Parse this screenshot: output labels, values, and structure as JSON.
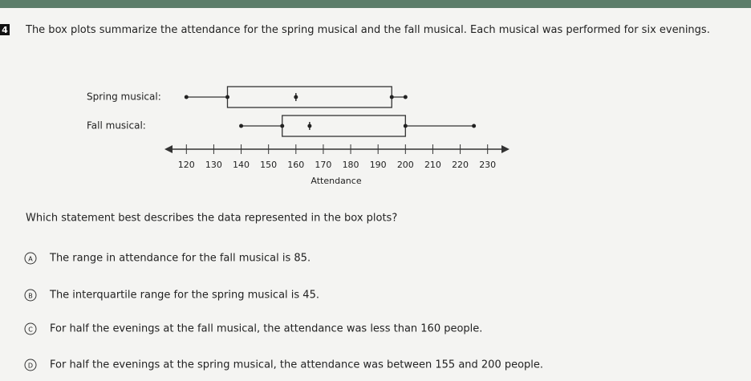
{
  "question_number": "4",
  "prompt": "The box plots summarize the attendance for the spring musical and the fall musical. Each musical was performed for six evenings.",
  "chart_data": {
    "type": "box",
    "xlabel": "Attendance",
    "categories": [
      "Spring musical:",
      "Fall musical:"
    ],
    "boxes": [
      {
        "min": 120,
        "q1": 135,
        "median": 160,
        "q3": 195,
        "max": 200
      },
      {
        "min": 140,
        "q1": 155,
        "median": 165,
        "q3": 200,
        "max": 225
      }
    ],
    "xlim": [
      112,
      238
    ],
    "xticks": [
      120,
      130,
      140,
      150,
      160,
      170,
      180,
      190,
      200,
      210,
      220,
      230
    ]
  },
  "question": "Which statement best describes the data represented in the box plots?",
  "options": [
    {
      "letter": "A",
      "text": "The range in attendance for the fall musical is 85."
    },
    {
      "letter": "B",
      "text": "The interquartile range for the spring musical is 45."
    },
    {
      "letter": "C",
      "text": "For half the evenings at the fall musical, the attendance was less than 160 people."
    },
    {
      "letter": "D",
      "text": "For half the evenings at the spring musical, the attendance was between 155 and 200 people."
    }
  ]
}
